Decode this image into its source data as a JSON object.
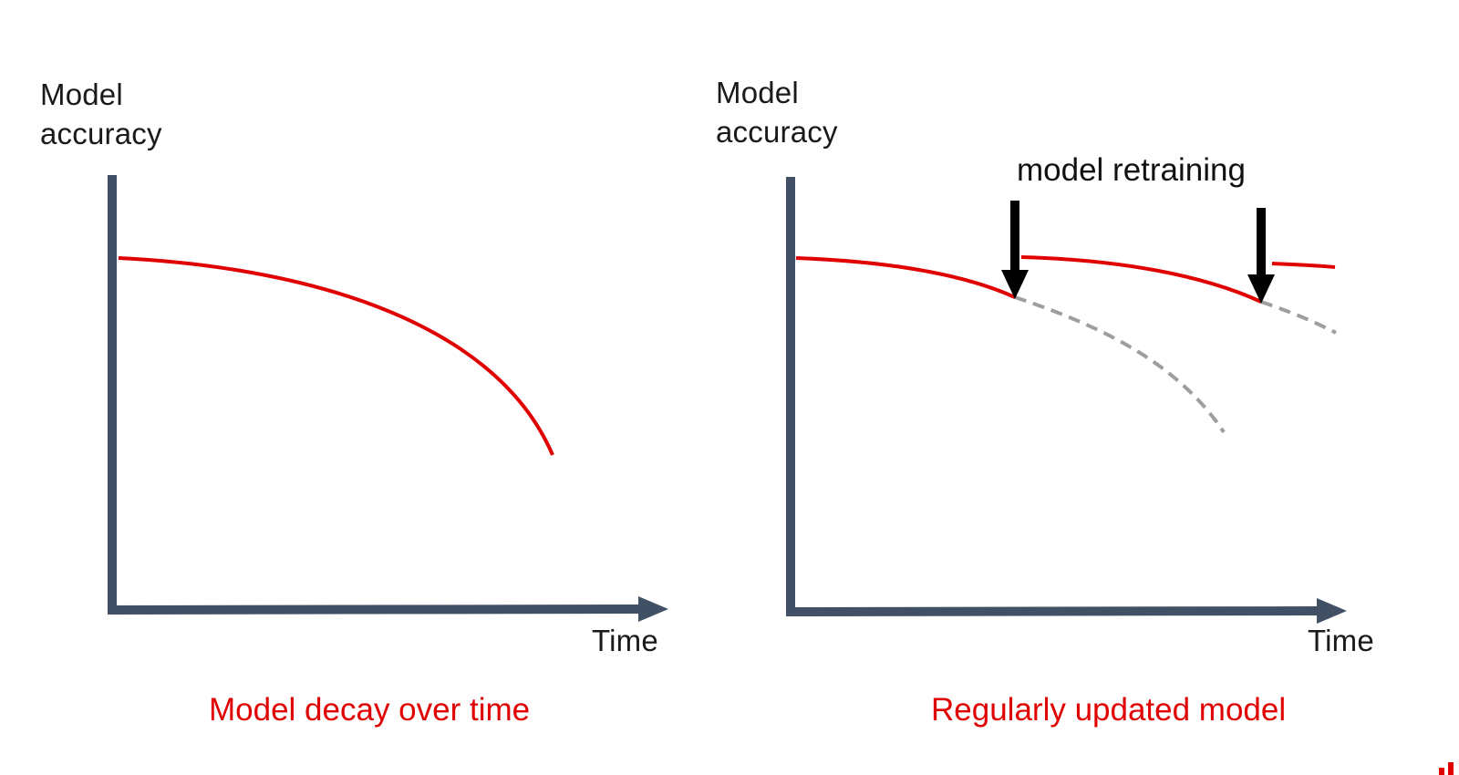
{
  "panels": [
    {
      "ylabel_lines": [
        "Model",
        "accuracy"
      ],
      "xlabel": "Time",
      "caption": "Model decay over time"
    },
    {
      "ylabel_lines": [
        "Model",
        "accuracy"
      ],
      "xlabel": "Time",
      "caption": "Regularly updated model",
      "annotation": "model retraining"
    }
  ],
  "colors": {
    "axis": "#415064",
    "accuracy_curve": "#e00000",
    "projected_decay": "#9e9e9e",
    "arrow": "#000000",
    "caption": "#e00000"
  }
}
